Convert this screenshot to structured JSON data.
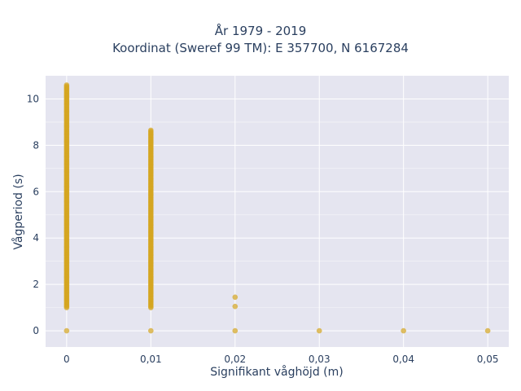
{
  "chart_data": {
    "type": "scatter",
    "title": [
      "År 1979 - 2019",
      "Koordinat (Sweref 99 TM): E 357700, N 6167284"
    ],
    "xlabel": "Signifikant våghöjd (m)",
    "ylabel": "Vågperiod (s)",
    "xlim": [
      -0.0025,
      0.0525
    ],
    "ylim": [
      -0.7,
      11.0
    ],
    "x_ticks": [
      0,
      0.01,
      0.02,
      0.03,
      0.04,
      0.05
    ],
    "x_tick_labels": [
      "0",
      "0,01",
      "0,02",
      "0,03",
      "0,04",
      "0,05"
    ],
    "y_ticks": [
      0,
      2,
      4,
      6,
      8,
      10
    ],
    "y_tick_labels": [
      "0",
      "2",
      "4",
      "6",
      "8",
      "10"
    ],
    "grid": true,
    "background": "#e5e5f0",
    "grid_color": "#ffffff",
    "marker_color": "#d4a520",
    "series": [
      {
        "x_columns": [
          {
            "x": 0,
            "y_range": [
              1.0,
              10.6
            ],
            "extra_y": [
              0
            ]
          },
          {
            "x": 0.01,
            "y_range": [
              1.0,
              8.65
            ],
            "extra_y": [
              0
            ]
          },
          {
            "x": 0.02,
            "y_range": null,
            "extra_y": [
              1.45,
              1.05,
              0
            ]
          },
          {
            "x": 0.03,
            "y_range": null,
            "extra_y": [
              0
            ]
          },
          {
            "x": 0.04,
            "y_range": null,
            "extra_y": [
              0
            ]
          },
          {
            "x": 0.05,
            "y_range": null,
            "extra_y": [
              0
            ]
          }
        ]
      }
    ]
  }
}
